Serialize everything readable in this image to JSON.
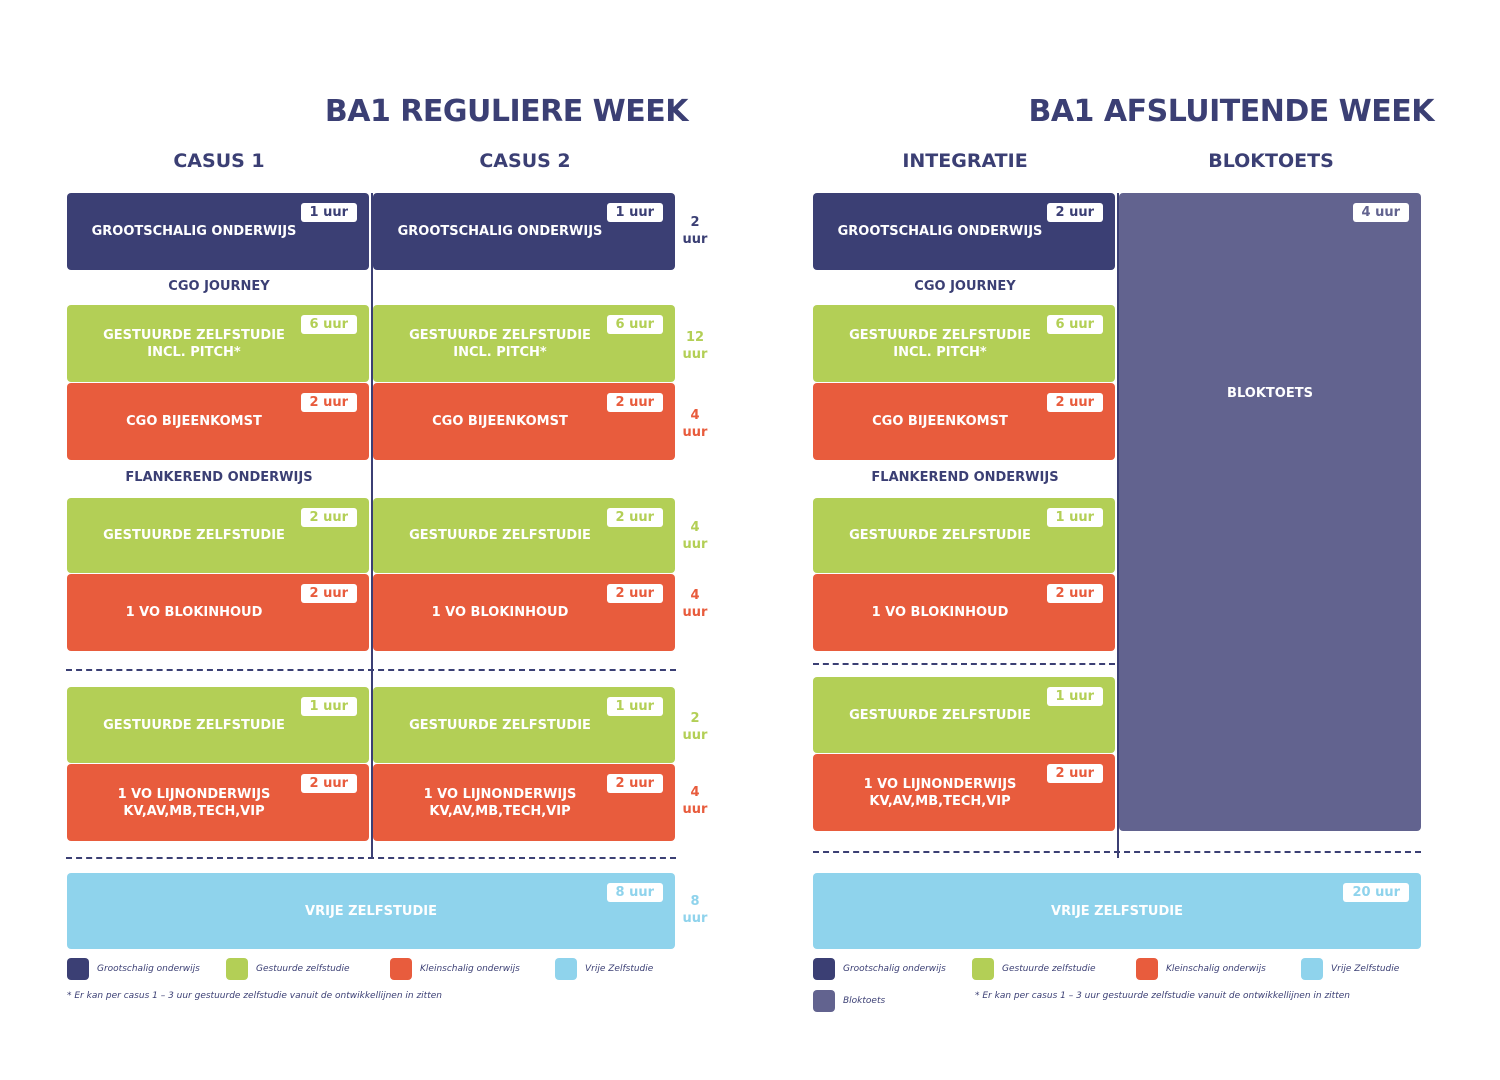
{
  "left": {
    "title": "BA1 REGULIERE WEEK",
    "col1": "CASUS 1",
    "col2": "CASUS 2",
    "sec_cgo": "CGO JOURNEY",
    "sec_flank": "FLANKEREND ONDERWIJS",
    "c1": {
      "go": {
        "label": "GROOTSCHALIG ONDERWIJS",
        "hours": "1 uur"
      },
      "gz1": {
        "label": "GESTUURDE ZELFSTUDIE\nINCL. PITCH*",
        "hours": "6 uur"
      },
      "cgo": {
        "label": "CGO BIJEENKOMST",
        "hours": "2 uur"
      },
      "gz2": {
        "label": "GESTUURDE ZELFSTUDIE",
        "hours": "2 uur"
      },
      "vo1": {
        "label": "1 VO BLOKINHOUD",
        "hours": "2 uur"
      },
      "gz3": {
        "label": "GESTUURDE ZELFSTUDIE",
        "hours": "1 uur"
      },
      "vo2": {
        "label": "1 VO LIJNONDERWIJS\nKV,AV,MB,TECH,VIP",
        "hours": "2 uur"
      }
    },
    "c2": {
      "go": {
        "label": "GROOTSCHALIG ONDERWIJS",
        "hours": "1 uur"
      },
      "gz1": {
        "label": "GESTUURDE ZELFSTUDIE\nINCL. PITCH*",
        "hours": "6 uur"
      },
      "cgo": {
        "label": "CGO BIJEENKOMST",
        "hours": "2 uur"
      },
      "gz2": {
        "label": "GESTUURDE ZELFSTUDIE",
        "hours": "2 uur"
      },
      "vo1": {
        "label": "1 VO BLOKINHOUD",
        "hours": "2 uur"
      },
      "gz3": {
        "label": "GESTUURDE ZELFSTUDIE",
        "hours": "1 uur"
      },
      "vo2": {
        "label": "1 VO LIJNONDERWIJS\nKV,AV,MB,TECH,VIP",
        "hours": "2 uur"
      }
    },
    "vrije": {
      "label": "VRIJE ZELFSTUDIE",
      "hours": "8 uur"
    },
    "totals": {
      "go": "2\nuur",
      "gz1": "12\nuur",
      "cgo": "4\nuur",
      "gz2": "4\nuur",
      "vo1": "4\nuur",
      "gz3": "2\nuur",
      "vo2": "4\nuur",
      "vrije": "8\nuur"
    },
    "legend": [
      "Grootschalig onderwijs",
      "Gestuurde zelfstudie",
      "Kleinschalig onderwijs",
      "Vrije Zelfstudie"
    ],
    "note": "* Er kan per casus 1 – 3 uur gestuurde zelfstudie vanuit de ontwikkellijnen in zitten"
  },
  "right": {
    "title": "BA1 AFSLUITENDE WEEK",
    "col1": "INTEGRATIE",
    "col2": "BLOKTOETS",
    "sec_cgo": "CGO JOURNEY",
    "sec_flank": "FLANKEREND ONDERWIJS",
    "go": {
      "label": "GROOTSCHALIG ONDERWIJS",
      "hours": "2 uur"
    },
    "gz1": {
      "label": "GESTUURDE ZELFSTUDIE\nINCL. PITCH*",
      "hours": "6 uur"
    },
    "cgo": {
      "label": "CGO BIJEENKOMST",
      "hours": "2 uur"
    },
    "gz2": {
      "label": "GESTUURDE ZELFSTUDIE",
      "hours": "1 uur"
    },
    "vo1": {
      "label": "1 VO BLOKINHOUD",
      "hours": "2 uur"
    },
    "gz3": {
      "label": "GESTUURDE ZELFSTUDIE",
      "hours": "1 uur"
    },
    "vo2": {
      "label": "1 VO LIJNONDERWIJS\nKV,AV,MB,TECH,VIP",
      "hours": "2 uur"
    },
    "bloktoets": {
      "label": "BLOKTOETS",
      "hours": "4 uur"
    },
    "vrije": {
      "label": "VRIJE ZELFSTUDIE",
      "hours": "20 uur"
    },
    "legend": [
      "Grootschalig onderwijs",
      "Gestuurde zelfstudie",
      "Kleinschalig onderwijs",
      "Vrije Zelfstudie",
      "Bloktoets"
    ],
    "note": "* Er kan per casus 1 – 3 uur gestuurde zelfstudie vanuit de ontwikkellijnen in zitten"
  },
  "colors": {
    "navy": "#3b3f74",
    "green": "#b3cf56",
    "red": "#e85c3d",
    "blue": "#8fd3ec",
    "purple": "#62638f"
  }
}
